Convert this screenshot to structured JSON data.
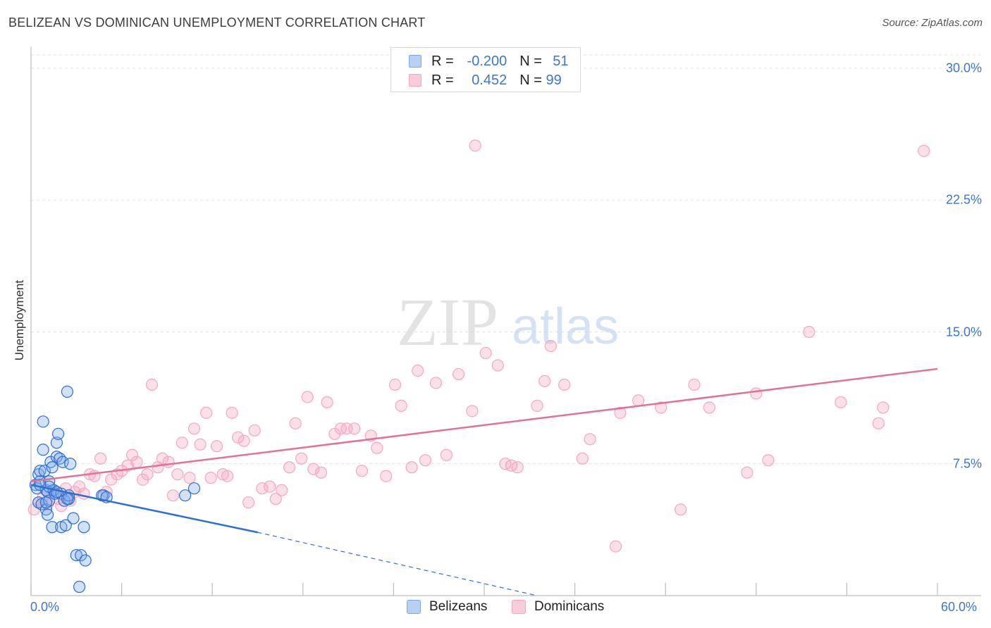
{
  "title": "BELIZEAN VS DOMINICAN UNEMPLOYMENT CORRELATION CHART",
  "source": "Source: ZipAtlas.com",
  "watermark": {
    "zip": "ZIP",
    "atlas": "atlas"
  },
  "legend": {
    "rows": [
      {
        "r_label": "R = ",
        "r_value": "-0.200",
        "n_label": "N = ",
        "n_value": "51"
      },
      {
        "r_label": "R = ",
        "r_value": "0.452",
        "n_label": "N = ",
        "n_value": "99"
      }
    ]
  },
  "bottom_legend": [
    "Belizeans",
    "Dominicans"
  ],
  "chart_data": {
    "type": "scatter",
    "title": "BELIZEAN VS DOMINICAN UNEMPLOYMENT CORRELATION CHART",
    "xlabel": "",
    "ylabel": "Unemployment",
    "xlim": [
      0,
      60
    ],
    "ylim": [
      0,
      31
    ],
    "y_ticks": [
      7.5,
      15.0,
      22.5,
      30.0
    ],
    "y_tick_labels": [
      "7.5%",
      "15.0%",
      "22.5%",
      "30.0%"
    ],
    "x_tick_labels": [
      "0.0%",
      "60.0%"
    ],
    "grid": true,
    "legend_position": "top-center",
    "colors": {
      "belizeans": "#7aa9ea",
      "belizeans_line": "#2f6fd1",
      "dominicans": "#f4a7c0",
      "dominicans_line": "#e2719a",
      "tick_text": "#3d77c8"
    },
    "series": [
      {
        "name": "Belizeans",
        "r": -0.2,
        "n": 51,
        "trend": {
          "x": [
            0,
            15
          ],
          "y": [
            6.3,
            3.6
          ]
        },
        "trend_dashed": {
          "x": [
            15,
            33.5
          ],
          "y": [
            3.6,
            0.0
          ]
        },
        "x": [
          0.3,
          0.4,
          0.5,
          0.5,
          0.6,
          0.6,
          0.7,
          0.8,
          0.8,
          0.9,
          1.0,
          1.0,
          1.1,
          1.1,
          1.2,
          1.2,
          1.3,
          1.4,
          1.4,
          1.5,
          1.5,
          1.6,
          1.7,
          1.7,
          1.8,
          1.9,
          2.0,
          2.0,
          2.1,
          2.2,
          2.3,
          2.4,
          2.5,
          2.5,
          2.6,
          2.8,
          3.0,
          3.2,
          3.3,
          3.5,
          3.6,
          4.8,
          4.7,
          5.0,
          10.2,
          10.8,
          1.2,
          1.7,
          0.6,
          2.4,
          1.0
        ],
        "y": [
          6.3,
          6.1,
          6.9,
          5.3,
          6.5,
          7.1,
          5.2,
          8.3,
          9.9,
          7.1,
          6.0,
          4.9,
          5.9,
          4.6,
          6.5,
          5.4,
          7.6,
          3.9,
          7.3,
          6.0,
          6.0,
          5.8,
          7.9,
          8.7,
          9.2,
          7.8,
          5.8,
          3.9,
          7.6,
          5.4,
          4.0,
          11.6,
          5.5,
          5.7,
          7.5,
          4.4,
          2.3,
          0.5,
          2.3,
          3.9,
          2.0,
          5.7,
          5.7,
          5.6,
          5.7,
          6.1,
          6.2,
          5.9,
          6.3,
          5.5,
          5.3
        ]
      },
      {
        "name": "Dominicans",
        "r": 0.452,
        "n": 99,
        "trend": {
          "x": [
            0,
            60
          ],
          "y": [
            6.5,
            12.9
          ]
        },
        "x": [
          0.2,
          0.5,
          0.8,
          1.1,
          1.5,
          1.8,
          2.0,
          2.3,
          2.6,
          2.9,
          3.2,
          3.5,
          3.9,
          4.2,
          4.6,
          5.0,
          5.3,
          5.7,
          6.0,
          6.4,
          6.7,
          7.0,
          7.4,
          7.7,
          8.0,
          8.4,
          8.7,
          9.1,
          9.4,
          9.7,
          10.0,
          10.5,
          10.8,
          11.2,
          11.6,
          11.9,
          12.3,
          12.7,
          13.0,
          13.3,
          13.7,
          14.1,
          14.4,
          14.8,
          15.3,
          15.8,
          16.2,
          16.6,
          17.1,
          17.5,
          17.9,
          18.3,
          18.7,
          19.2,
          19.6,
          20.1,
          20.5,
          20.9,
          21.4,
          21.9,
          22.5,
          22.9,
          23.5,
          24.1,
          24.5,
          25.2,
          25.6,
          26.1,
          26.8,
          27.5,
          28.3,
          29.2,
          30.1,
          30.9,
          31.4,
          31.8,
          32.2,
          33.5,
          34.0,
          34.4,
          35.3,
          36.5,
          37.0,
          38.7,
          39.0,
          40.2,
          41.7,
          43.0,
          43.9,
          44.9,
          47.4,
          48.0,
          48.8,
          51.5,
          53.6,
          56.1,
          56.4,
          59.1,
          29.4
        ],
        "y": [
          4.9,
          5.3,
          5.6,
          5.2,
          5.8,
          5.5,
          5.1,
          6.1,
          5.4,
          5.9,
          6.2,
          5.8,
          6.9,
          6.8,
          7.8,
          5.9,
          6.6,
          6.9,
          7.1,
          7.4,
          8.0,
          7.6,
          6.6,
          6.9,
          12.0,
          7.3,
          7.8,
          7.6,
          5.7,
          6.9,
          8.7,
          6.7,
          9.5,
          8.6,
          10.4,
          6.7,
          8.5,
          6.9,
          6.8,
          10.4,
          9.0,
          8.8,
          5.3,
          9.4,
          6.1,
          6.2,
          5.5,
          6.0,
          7.3,
          9.8,
          7.8,
          11.3,
          7.2,
          7.0,
          11.0,
          9.2,
          9.5,
          9.5,
          9.5,
          7.1,
          9.1,
          8.4,
          6.8,
          12.0,
          10.8,
          7.3,
          12.8,
          7.7,
          12.1,
          8.0,
          12.6,
          10.5,
          13.8,
          13.1,
          7.5,
          7.4,
          7.3,
          10.8,
          12.2,
          14.2,
          12.0,
          7.8,
          8.9,
          2.8,
          10.4,
          11.1,
          10.7,
          4.9,
          12.0,
          10.7,
          7.0,
          11.5,
          7.7,
          15.0,
          11.0,
          9.8,
          10.7,
          25.3,
          25.6
        ],
        "note_last_point": ""
      }
    ]
  }
}
